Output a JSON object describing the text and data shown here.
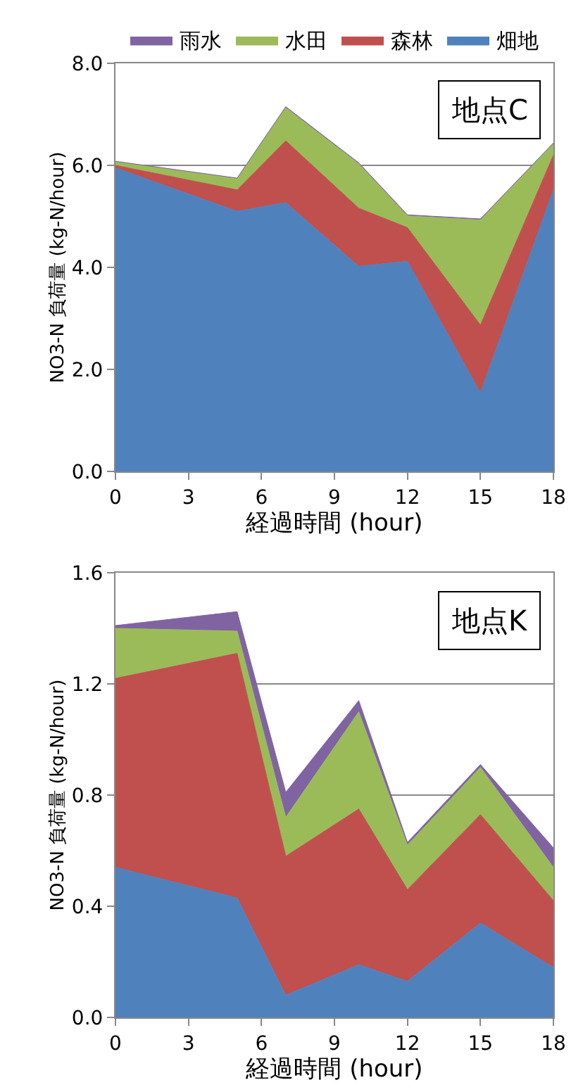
{
  "chart_data": [
    {
      "type": "area",
      "stacked": true,
      "xlabel": "経過時間 (hour)",
      "ylabel": "NO3-N 負荷量 (kg-N/hour)",
      "annotations": [
        "地点C"
      ],
      "x": [
        0,
        5,
        7,
        10,
        12,
        15,
        18
      ],
      "xlim": [
        0,
        18
      ],
      "xticks": [
        0,
        3,
        6,
        9,
        12,
        15,
        18
      ],
      "ylim": [
        0,
        8
      ],
      "yticks": [
        {
          "value": 0,
          "label": "0.0"
        },
        {
          "value": 2,
          "label": "2.0"
        },
        {
          "value": 4,
          "label": "4.0"
        },
        {
          "value": 6,
          "label": "6.0"
        },
        {
          "value": 8,
          "label": "8.0"
        }
      ],
      "grid": "y",
      "legend": "top",
      "series": [
        {
          "name": "畑地",
          "color": "#4f81bd",
          "values": [
            5.95,
            5.1,
            5.27,
            4.02,
            4.12,
            1.54,
            5.52
          ]
        },
        {
          "name": "森林",
          "color": "#c0504d",
          "values": [
            0.05,
            0.42,
            1.21,
            1.14,
            0.66,
            1.33,
            0.68
          ]
        },
        {
          "name": "水田",
          "color": "#9bbb59",
          "values": [
            0.07,
            0.22,
            0.65,
            0.87,
            0.23,
            2.06,
            0.23
          ]
        },
        {
          "name": "雨水",
          "color": "#8064a2",
          "values": [
            0.01,
            0.01,
            0.02,
            0.02,
            0.02,
            0.02,
            0.01
          ]
        }
      ]
    },
    {
      "type": "area",
      "stacked": true,
      "xlabel": "経過時間 (hour)",
      "ylabel": "NO3-N 負荷量 (kg-N/hour)",
      "annotations": [
        "地点K"
      ],
      "x": [
        0,
        5,
        7,
        10,
        12,
        15,
        18
      ],
      "xlim": [
        0,
        18
      ],
      "xticks": [
        0,
        3,
        6,
        9,
        12,
        15,
        18
      ],
      "ylim": [
        0,
        1.6
      ],
      "yticks": [
        {
          "value": 0,
          "label": "0.0"
        },
        {
          "value": 0.4,
          "label": "0.4"
        },
        {
          "value": 0.8,
          "label": "0.8"
        },
        {
          "value": 1.2,
          "label": "1.2"
        },
        {
          "value": 1.6,
          "label": "1.6"
        }
      ],
      "grid": "y",
      "series": [
        {
          "color": "#4f81bd",
          "values": [
            0.54,
            0.43,
            0.08,
            0.19,
            0.13,
            0.34,
            0.18
          ]
        },
        {
          "color": "#c0504d",
          "values": [
            0.68,
            0.88,
            0.5,
            0.56,
            0.33,
            0.39,
            0.24
          ]
        },
        {
          "color": "#9bbb59",
          "values": [
            0.18,
            0.08,
            0.14,
            0.35,
            0.16,
            0.17,
            0.12
          ]
        },
        {
          "color": "#8064a2",
          "values": [
            0.01,
            0.07,
            0.09,
            0.04,
            0.01,
            0.01,
            0.07
          ]
        }
      ]
    }
  ]
}
